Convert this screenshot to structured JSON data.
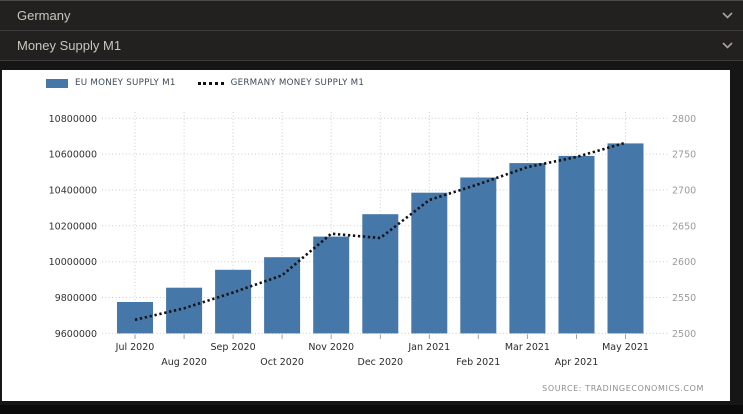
{
  "header": {
    "country": {
      "label": "Germany"
    },
    "indicator": {
      "label": "Money Supply M1"
    }
  },
  "legend": [
    {
      "label": "EU MONEY SUPPLY M1"
    },
    {
      "label": "GERMANY MONEY SUPPLY M1"
    }
  ],
  "source_text": "SOURCE:  TRADINGECONOMICS.COM",
  "colors": {
    "bar": "#4577A9",
    "line": "#111111",
    "grid": "#CCCCCC",
    "left_axis_text": "#333333",
    "right_axis_text": "#9B9B9B",
    "x_axis_text": "#2B2B2B",
    "tick_mark": "#9E9E9E",
    "panel_bg": "#FFFFFF",
    "page_bg": "#161616",
    "header_bg": "#222120",
    "header_text": "#C9C6BF"
  },
  "chart_data": {
    "type": "bar",
    "subtype": "bar-plus-dotted-line",
    "categories": [
      "Jul 2020",
      "Aug 2020",
      "Sep 2020",
      "Oct 2020",
      "Nov 2020",
      "Dec 2020",
      "Jan 2021",
      "Feb 2021",
      "Mar 2021",
      "Apr 2021",
      "May 2021"
    ],
    "series": [
      {
        "name": "EU MONEY SUPPLY M1",
        "type": "bar",
        "axis": "left",
        "values": [
          9775000,
          9855000,
          9955000,
          10025000,
          10140000,
          10265000,
          10385000,
          10470000,
          10550000,
          10590000,
          10660000
        ]
      },
      {
        "name": "GERMANY MONEY SUPPLY M1",
        "type": "dotted-line",
        "axis": "right",
        "values": [
          2519,
          2535,
          2557,
          2581,
          2639,
          2633,
          2686,
          2708,
          2732,
          2746,
          2766
        ]
      }
    ],
    "left_axis": {
      "min": 9600000,
      "max": 10800000,
      "tick_interval": 200000,
      "ticks": [
        9600000,
        9800000,
        10000000,
        10200000,
        10400000,
        10600000,
        10800000
      ]
    },
    "right_axis": {
      "min": 2500,
      "max": 2800,
      "tick_interval": 50,
      "ticks": [
        2500,
        2550,
        2600,
        2650,
        2700,
        2750,
        2800
      ]
    },
    "grid": true,
    "legend_position": "top-left"
  }
}
